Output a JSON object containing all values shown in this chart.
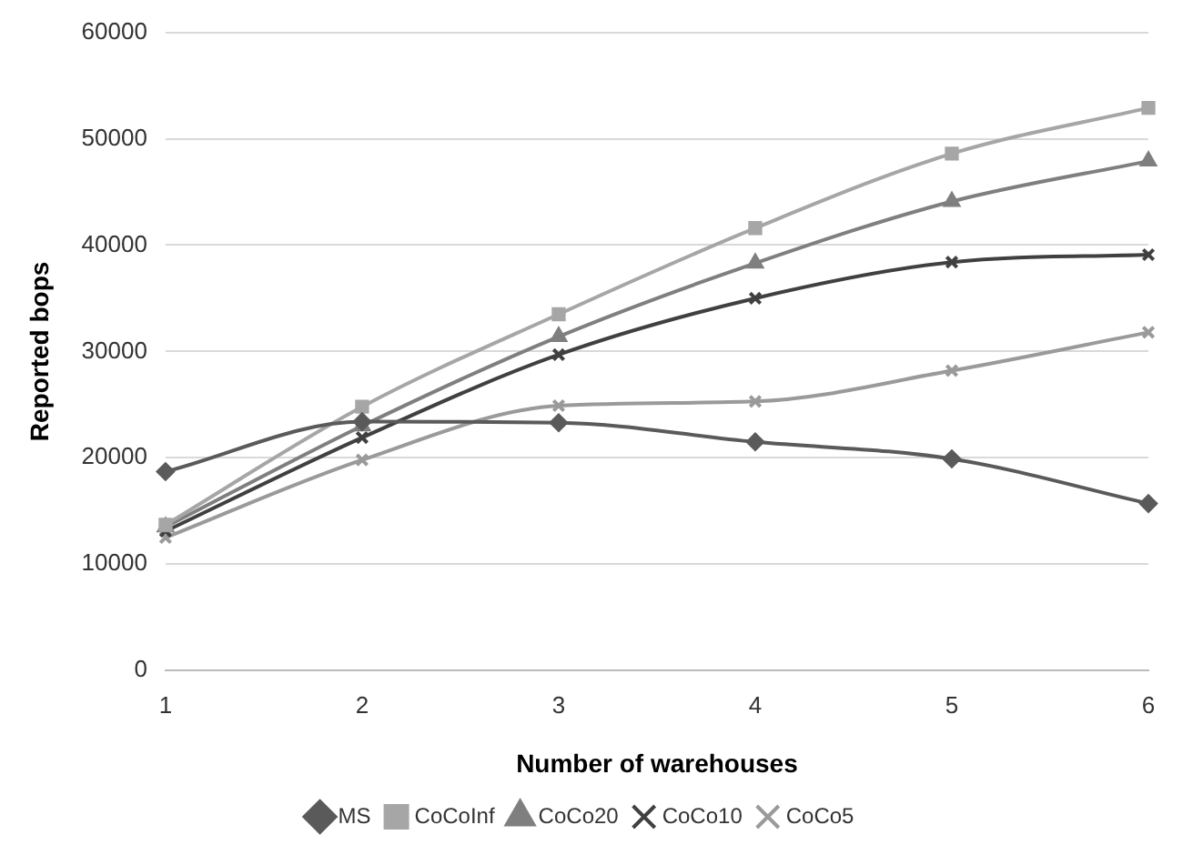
{
  "chart_data": {
    "type": "line",
    "xlabel": "Number of warehouses",
    "ylabel": "Reported bops",
    "categories": [
      "1",
      "2",
      "3",
      "4",
      "5",
      "6"
    ],
    "ylim": [
      0,
      60000
    ],
    "yticks": [
      0,
      10000,
      20000,
      30000,
      40000,
      50000,
      60000
    ],
    "grid": "y",
    "legend": "bottom",
    "series": [
      {
        "name": "MS",
        "color": "#5a5a5a",
        "marker": "diamond",
        "values": [
          18700,
          23400,
          23300,
          21500,
          19900,
          15700
        ]
      },
      {
        "name": "CoCoInf",
        "color": "#a6a6a6",
        "marker": "square",
        "values": [
          13700,
          24800,
          33500,
          41600,
          48600,
          52900
        ]
      },
      {
        "name": "CoCo20",
        "color": "#7f7f7f",
        "marker": "triangle",
        "values": [
          13500,
          23000,
          31400,
          38300,
          44100,
          47900
        ]
      },
      {
        "name": "CoCo10",
        "color": "#404040",
        "marker": "cross",
        "values": [
          13100,
          21900,
          29700,
          35000,
          38400,
          39100
        ]
      },
      {
        "name": "CoCo5",
        "color": "#9a9a9a",
        "marker": "cross",
        "values": [
          12500,
          19800,
          24900,
          25300,
          28200,
          31800
        ]
      }
    ]
  }
}
